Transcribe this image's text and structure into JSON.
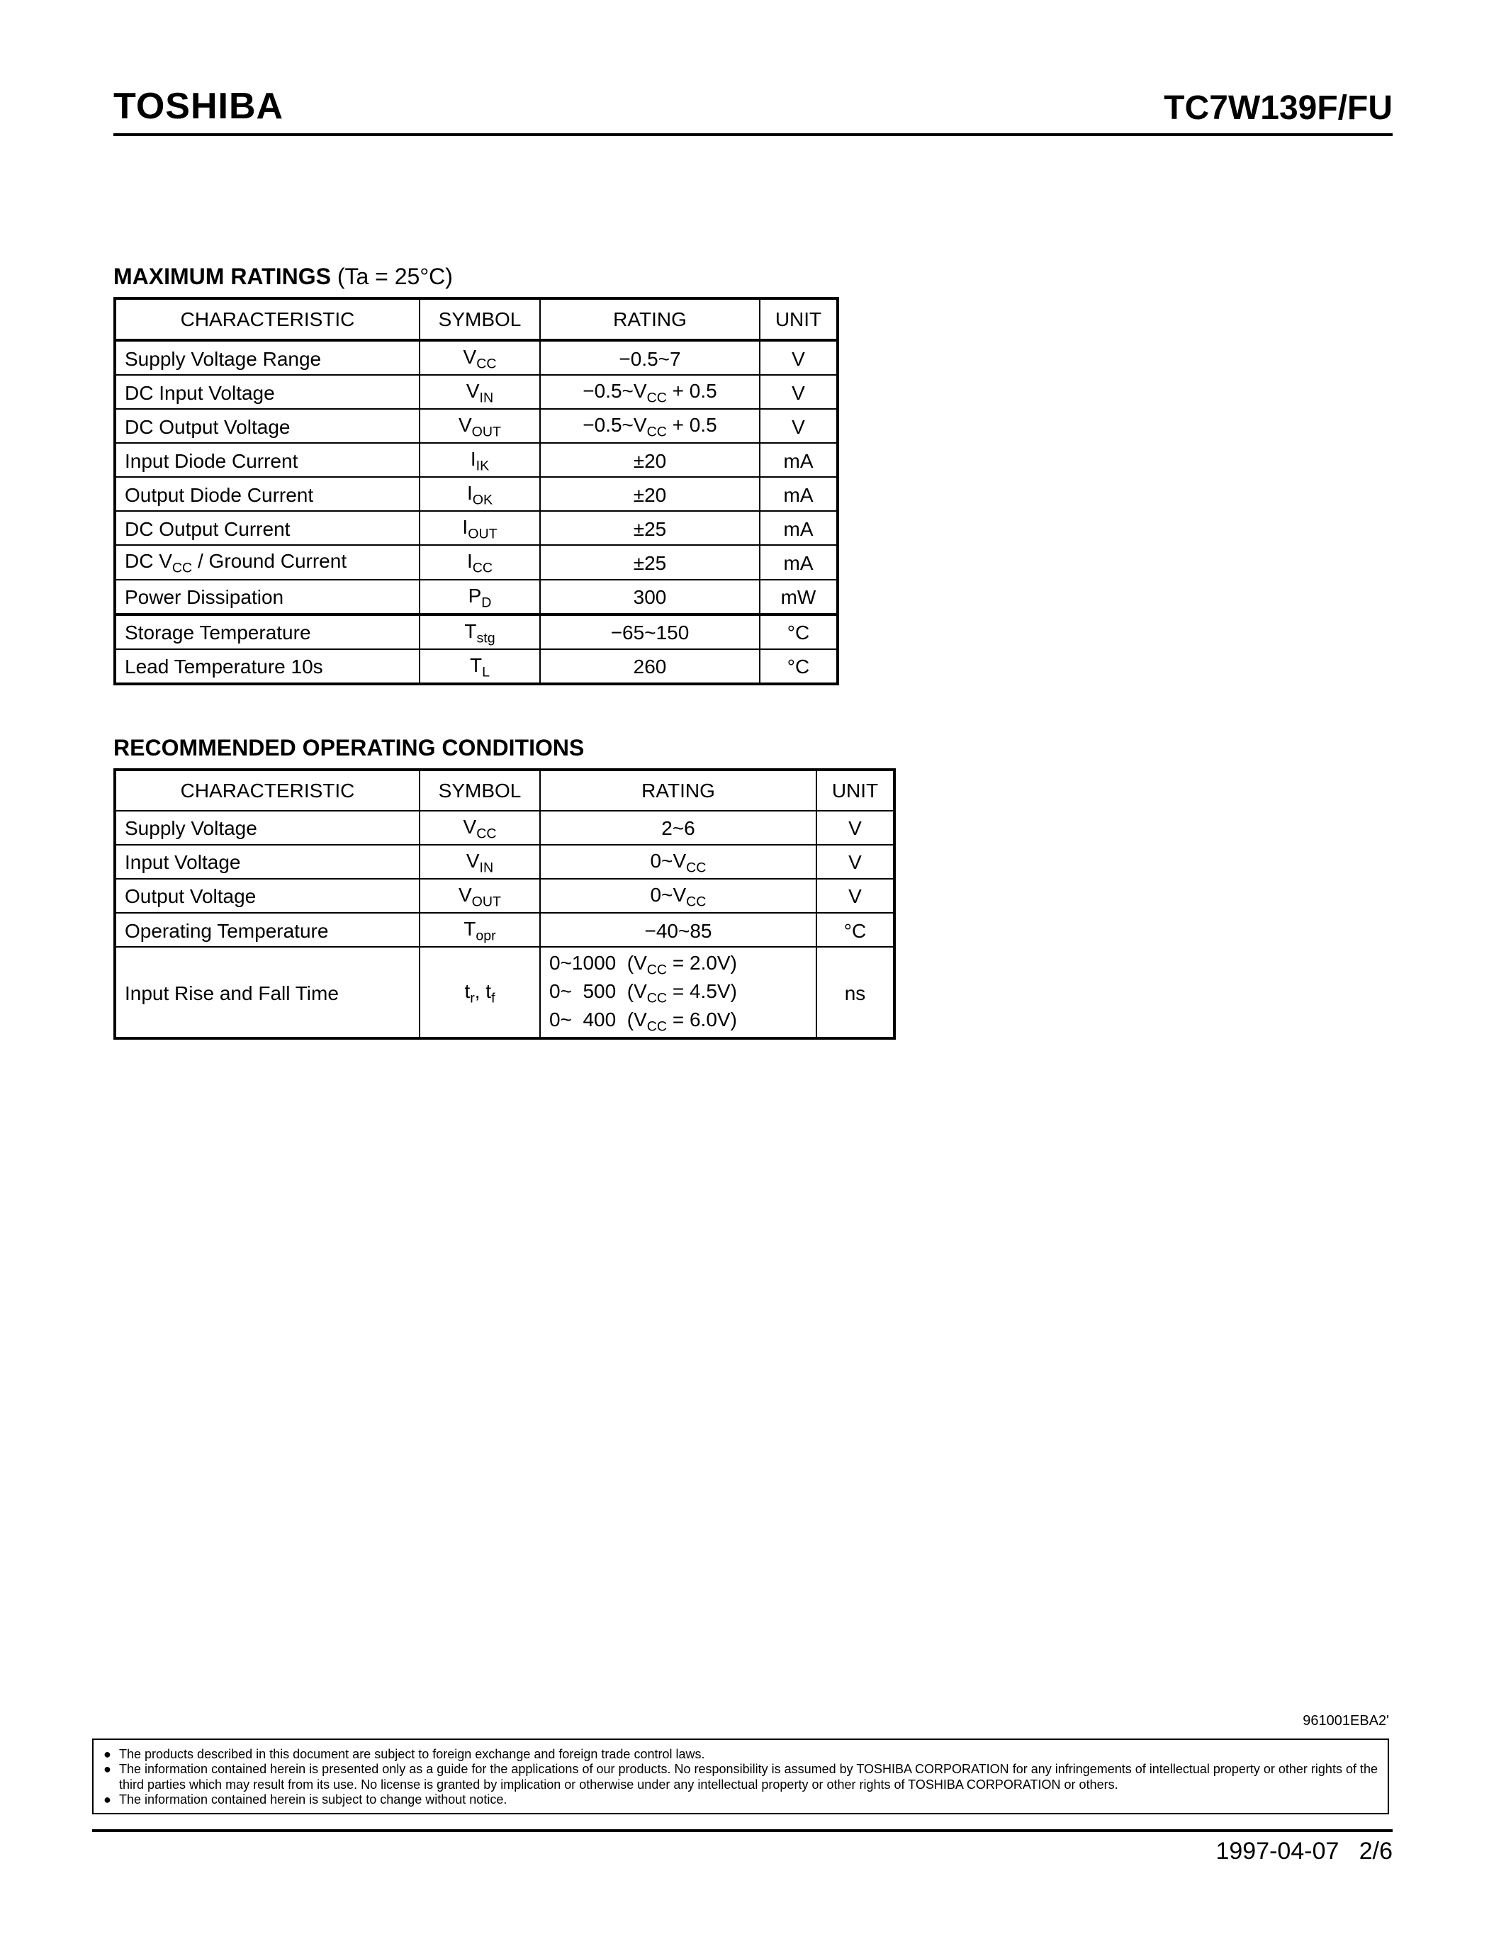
{
  "header": {
    "brand": "TOSHIBA",
    "part_number": "TC7W139F/FU"
  },
  "section1": {
    "title": "MAXIMUM RATINGS",
    "condition": "(Ta = 25°C)",
    "columns": [
      "CHARACTERISTIC",
      "SYMBOL",
      "RATING",
      "UNIT"
    ],
    "rows": [
      {
        "char": "Supply Voltage Range",
        "sym_main": "V",
        "sym_sub": "CC",
        "rating": "−0.5~7",
        "unit": "V"
      },
      {
        "char": "DC Input Voltage",
        "sym_main": "V",
        "sym_sub": "IN",
        "rating": "−0.5~V_CC + 0.5",
        "unit": "V"
      },
      {
        "char": "DC Output Voltage",
        "sym_main": "V",
        "sym_sub": "OUT",
        "rating": "−0.5~V_CC + 0.5",
        "unit": "V"
      },
      {
        "char": "Input Diode Current",
        "sym_main": "I",
        "sym_sub": "IK",
        "rating": "±20",
        "unit": "mA"
      },
      {
        "char": "Output Diode Current",
        "sym_main": "I",
        "sym_sub": "OK",
        "rating": "±20",
        "unit": "mA"
      },
      {
        "char": "DC Output Current",
        "sym_main": "I",
        "sym_sub": "OUT",
        "rating": "±25",
        "unit": "mA"
      },
      {
        "char": "DC V_CC / Ground Current",
        "sym_main": "I",
        "sym_sub": "CC",
        "rating": "±25",
        "unit": "mA"
      },
      {
        "char": "Power Dissipation",
        "sym_main": "P",
        "sym_sub": "D",
        "rating": "300",
        "unit": "mW"
      },
      {
        "char": "Storage Temperature",
        "sym_main": "T",
        "sym_sub": "stg",
        "rating": "−65~150",
        "unit": "°C"
      },
      {
        "char": "Lead Temperature 10s",
        "sym_main": "T",
        "sym_sub": "L",
        "rating": "260",
        "unit": "°C"
      }
    ],
    "heavy_before_idx": 8
  },
  "section2": {
    "title": "RECOMMENDED OPERATING CONDITIONS",
    "columns": [
      "CHARACTERISTIC",
      "SYMBOL",
      "RATING",
      "UNIT"
    ],
    "rows": [
      {
        "char": "Supply Voltage",
        "sym_main": "V",
        "sym_sub": "CC",
        "rating": "2~6",
        "unit": "V"
      },
      {
        "char": "Input Voltage",
        "sym_main": "V",
        "sym_sub": "IN",
        "rating": "0~V_CC",
        "unit": "V"
      },
      {
        "char": "Output Voltage",
        "sym_main": "V",
        "sym_sub": "OUT",
        "rating": "0~V_CC",
        "unit": "V"
      },
      {
        "char": "Operating Temperature",
        "sym_main": "T",
        "sym_sub": "opr",
        "rating": "−40~85",
        "unit": "°C"
      }
    ],
    "last_row": {
      "char": "Input Rise and Fall Time",
      "sym_html": "t_r, t_f",
      "ratings": [
        "0~1000  (V_CC = 2.0V)",
        "0~  500  (V_CC = 4.5V)",
        "0~  400  (V_CC = 6.0V)"
      ],
      "unit": "ns"
    }
  },
  "doc_code": "961001EBA2'",
  "disclaimers": [
    "The products described in this document are subject to foreign exchange and foreign trade control laws.",
    "The information contained herein is presented only as a guide for the applications of our products. No responsibility is assumed by TOSHIBA CORPORATION for any infringements of intellectual property or other rights of the third parties which may result from its use. No license is granted by implication or otherwise under any intellectual property or other rights of TOSHIBA CORPORATION or others.",
    "The information contained herein is subject to change without notice."
  ],
  "footer": {
    "date": "1997-04-07",
    "page": "2/6"
  }
}
